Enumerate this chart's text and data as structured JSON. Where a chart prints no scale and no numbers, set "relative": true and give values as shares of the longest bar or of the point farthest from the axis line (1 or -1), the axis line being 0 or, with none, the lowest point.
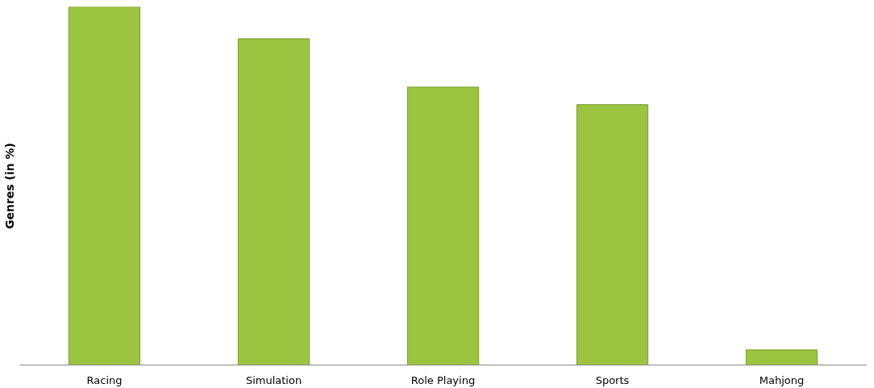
{
  "chart_data": {
    "type": "bar",
    "ylabel": "Genres (in %)",
    "relative": true,
    "categories": [
      "Racing",
      "Simulation",
      "Role Playing",
      "Sports",
      "Mahjong"
    ],
    "values": [
      1,
      0.911,
      0.776,
      0.727,
      0.042
    ],
    "color": "#9bc440",
    "grid": false
  }
}
